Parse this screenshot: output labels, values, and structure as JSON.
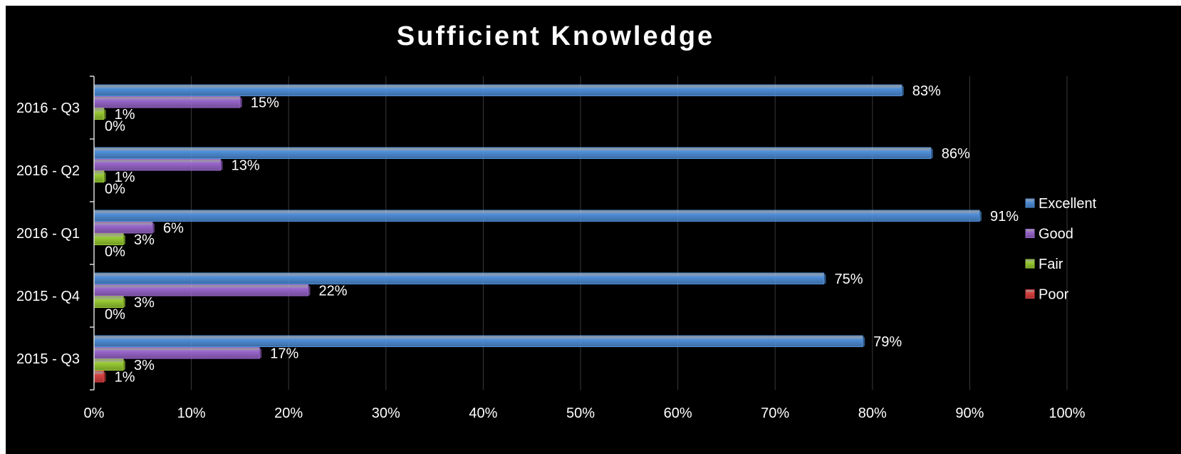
{
  "chart_data": {
    "type": "bar",
    "orientation": "horizontal",
    "title": "Sufficient Knowledge",
    "xlabel": "",
    "ylabel": "",
    "xlim": [
      0,
      100
    ],
    "x_ticks": [
      "0%",
      "10%",
      "20%",
      "30%",
      "40%",
      "50%",
      "60%",
      "70%",
      "80%",
      "90%",
      "100%"
    ],
    "grid": true,
    "legend_position": "right",
    "categories": [
      "2016 - Q3",
      "2016 - Q2",
      "2016 - Q1",
      "2015 - Q4",
      "2015 - Q3"
    ],
    "series": [
      {
        "name": "Excellent",
        "color": "#4f8fd9",
        "values": [
          83,
          86,
          91,
          75,
          79
        ],
        "labels": [
          "83%",
          "86%",
          "91%",
          "75%",
          "79%"
        ]
      },
      {
        "name": "Good",
        "color": "#9966cc",
        "values": [
          15,
          13,
          6,
          22,
          17
        ],
        "labels": [
          "15%",
          "13%",
          "6%",
          "22%",
          "17%"
        ]
      },
      {
        "name": "Fair",
        "color": "#99cc33",
        "values": [
          1,
          1,
          3,
          3,
          3
        ],
        "labels": [
          "1%",
          "1%",
          "3%",
          "3%",
          "3%"
        ]
      },
      {
        "name": "Poor",
        "color": "#d94040",
        "values": [
          0,
          0,
          0,
          0,
          1
        ],
        "labels": [
          "0%",
          "0%",
          "0%",
          "0%",
          "1%"
        ]
      }
    ]
  }
}
